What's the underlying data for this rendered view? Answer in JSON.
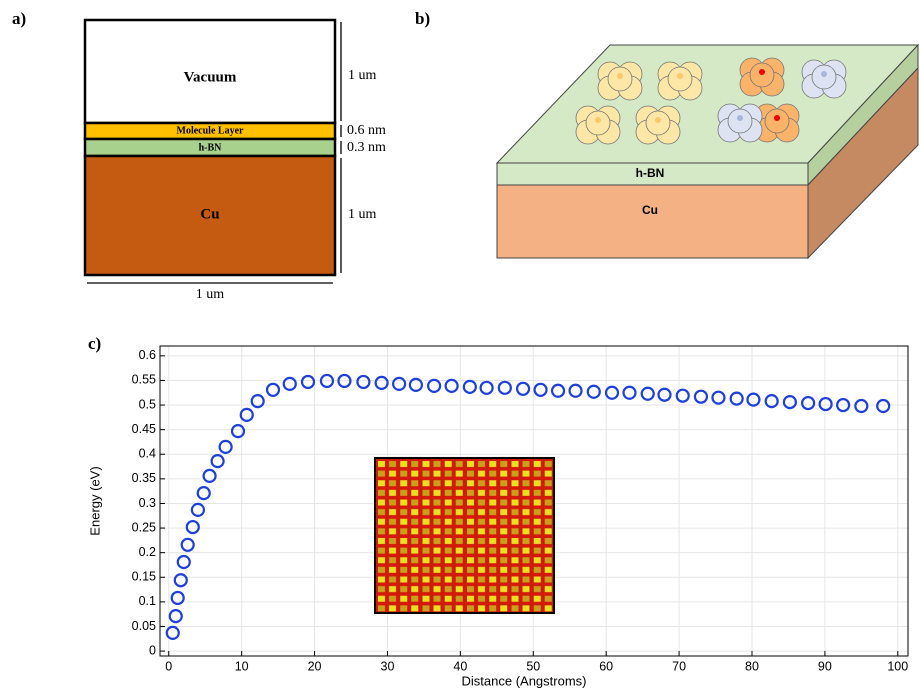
{
  "panel_labels": [
    "a)",
    "b)",
    "c)"
  ],
  "diagram_a": {
    "layers": [
      "Vacuum",
      "Molecule Layer",
      "h-BN",
      "Cu"
    ],
    "thicknesses": [
      "1 um",
      "0.6 nm",
      "0.3 nm",
      "1 um"
    ],
    "width": "1 um"
  },
  "diagram_b": {
    "layers": [
      "h-BN",
      "Cu"
    ]
  },
  "chart_data": {
    "type": "scatter",
    "xlabel": "Distance (Angstroms)",
    "ylabel": "Energy (eV)",
    "color": "#1f3fd9",
    "grid": true,
    "x": [
      0.55,
      0.96,
      1.23,
      1.65,
      2.06,
      2.6,
      3.3,
      4.0,
      4.8,
      5.6,
      6.7,
      7.8,
      9.5,
      10.7,
      12.2,
      14.3,
      16.6,
      19.1,
      21.7,
      24.1,
      26.7,
      29.2,
      31.6,
      33.9,
      36.4,
      38.8,
      41.3,
      43.6,
      46.1,
      48.6,
      51.0,
      53.4,
      55.8,
      58.3,
      60.8,
      63.2,
      65.7,
      68.0,
      70.5,
      73.0,
      75.4,
      77.9,
      80.2,
      82.7,
      85.2,
      87.7,
      90.1,
      92.5,
      95.0,
      98.0
    ],
    "values": [
      0.037,
      0.071,
      0.108,
      0.144,
      0.181,
      0.216,
      0.252,
      0.287,
      0.321,
      0.356,
      0.386,
      0.415,
      0.447,
      0.48,
      0.508,
      0.531,
      0.543,
      0.547,
      0.549,
      0.549,
      0.547,
      0.545,
      0.543,
      0.541,
      0.539,
      0.539,
      0.537,
      0.535,
      0.535,
      0.533,
      0.531,
      0.529,
      0.529,
      0.527,
      0.525,
      0.525,
      0.523,
      0.521,
      0.519,
      0.517,
      0.515,
      0.513,
      0.511,
      0.508,
      0.506,
      0.504,
      0.502,
      0.5,
      0.498,
      0.498
    ],
    "xlim": [
      -1.2,
      101.4
    ],
    "ylim": [
      -0.01,
      0.62
    ],
    "xticks": [
      0,
      10,
      20,
      30,
      40,
      50,
      60,
      70,
      80,
      90,
      100
    ],
    "yticks": [
      0,
      0.05,
      0.1,
      0.15,
      0.2,
      0.25,
      0.3,
      0.35,
      0.4,
      0.45,
      0.5,
      0.55,
      0.6
    ]
  }
}
